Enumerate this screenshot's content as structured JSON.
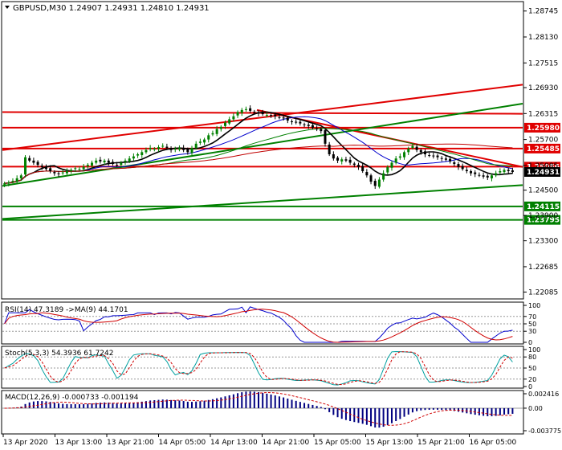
{
  "chart_data": {
    "type": "candlestick",
    "symbol_header": "GBPUSD,M30  1.24907 1.24931 1.24810 1.24931",
    "current_price": "1.24931",
    "price_axis": {
      "ylim": [
        1.2196,
        1.2893
      ],
      "ticks": [
        "1.28745",
        "1.28130",
        "1.27515",
        "1.26930",
        "1.26315",
        "1.25700",
        "1.25085",
        "1.24500",
        "1.23900",
        "1.23300",
        "1.22685",
        "1.22085"
      ]
    },
    "time_labels": [
      "13 Apr 2020",
      "13 Apr 13:00",
      "13 Apr 21:00",
      "14 Apr 05:00",
      "14 Apr 13:00",
      "14 Apr 21:00",
      "15 Apr 05:00",
      "15 Apr 13:00",
      "15 Apr 21:00",
      "16 Apr 05:00"
    ],
    "closes": [
      1.2466,
      1.2468,
      1.2472,
      1.2478,
      1.2485,
      1.2528,
      1.252,
      1.2515,
      1.251,
      1.2505,
      1.25,
      1.2495,
      1.249,
      1.2488,
      1.2492,
      1.2495,
      1.2498,
      1.2502,
      1.25,
      1.2505,
      1.251,
      1.2515,
      1.252,
      1.2518,
      1.252,
      1.2515,
      1.2512,
      1.251,
      1.2515,
      1.252,
      1.2525,
      1.253,
      1.2535,
      1.254,
      1.2545,
      1.255,
      1.2548,
      1.2552,
      1.2555,
      1.255,
      1.2545,
      1.2548,
      1.255,
      1.2545,
      1.254,
      1.255,
      1.256,
      1.2565,
      1.257,
      1.258,
      1.2585,
      1.2595,
      1.26,
      1.261,
      1.2618,
      1.2625,
      1.2635,
      1.264,
      1.2642,
      1.2638,
      1.2635,
      1.2632,
      1.263,
      1.2628,
      1.2627,
      1.2625,
      1.2622,
      1.262,
      1.2615,
      1.2612,
      1.261,
      1.2608,
      1.2605,
      1.2602,
      1.2598,
      1.2595,
      1.259,
      1.256,
      1.2535,
      1.2525,
      1.252,
      1.2523,
      1.252,
      1.2515,
      1.251,
      1.2505,
      1.2495,
      1.2485,
      1.247,
      1.246,
      1.2475,
      1.249,
      1.2505,
      1.2515,
      1.2525,
      1.253,
      1.254,
      1.2548,
      1.2555,
      1.2545,
      1.254,
      1.2535,
      1.2532,
      1.253,
      1.2528,
      1.2525,
      1.2522,
      1.2518,
      1.2512,
      1.2505,
      1.25,
      1.2495,
      1.249,
      1.2488,
      1.2485,
      1.2482,
      1.248,
      1.2485,
      1.249,
      1.2495,
      1.2498,
      1.2495,
      1.2493
    ],
    "support_resistance_levels": [
      {
        "label": "1.25980",
        "value": 1.2598,
        "color": "#e00000"
      },
      {
        "label": "1.25485",
        "value": 1.25485,
        "color": "#e00000"
      },
      {
        "label": "1.25056",
        "value": 1.25056,
        "color": "#e00000"
      },
      {
        "label": "1.24115",
        "value": 1.24115,
        "color": "#008000"
      },
      {
        "label": "1.23795",
        "value": 1.23795,
        "color": "#008000"
      }
    ],
    "rsi": {
      "header": "RSI(14) 47.3189  ->MA(9) 44.1701",
      "ticks": [
        "100",
        "70",
        "50",
        "30",
        "0"
      ]
    },
    "stoch": {
      "header": "Stoch(5,3,3) 54.3936 61.7242",
      "ticks": [
        "100",
        "80",
        "50",
        "20",
        "0"
      ]
    },
    "macd": {
      "header": "MACD(12,26,9) -0.000733 -0.001194",
      "ticks": [
        "0.002416",
        "0.00",
        "-0.003775"
      ]
    },
    "colors": {
      "bull": "#008000",
      "bear": "#000000",
      "resistance": "#e00000",
      "support": "#008000",
      "ma_fast": "#000000",
      "ma_mid": "#0000cc",
      "ma_slow": "#c00000",
      "signal": "#d00000",
      "macd_bar": "#000080",
      "price_label": "#000000"
    }
  }
}
